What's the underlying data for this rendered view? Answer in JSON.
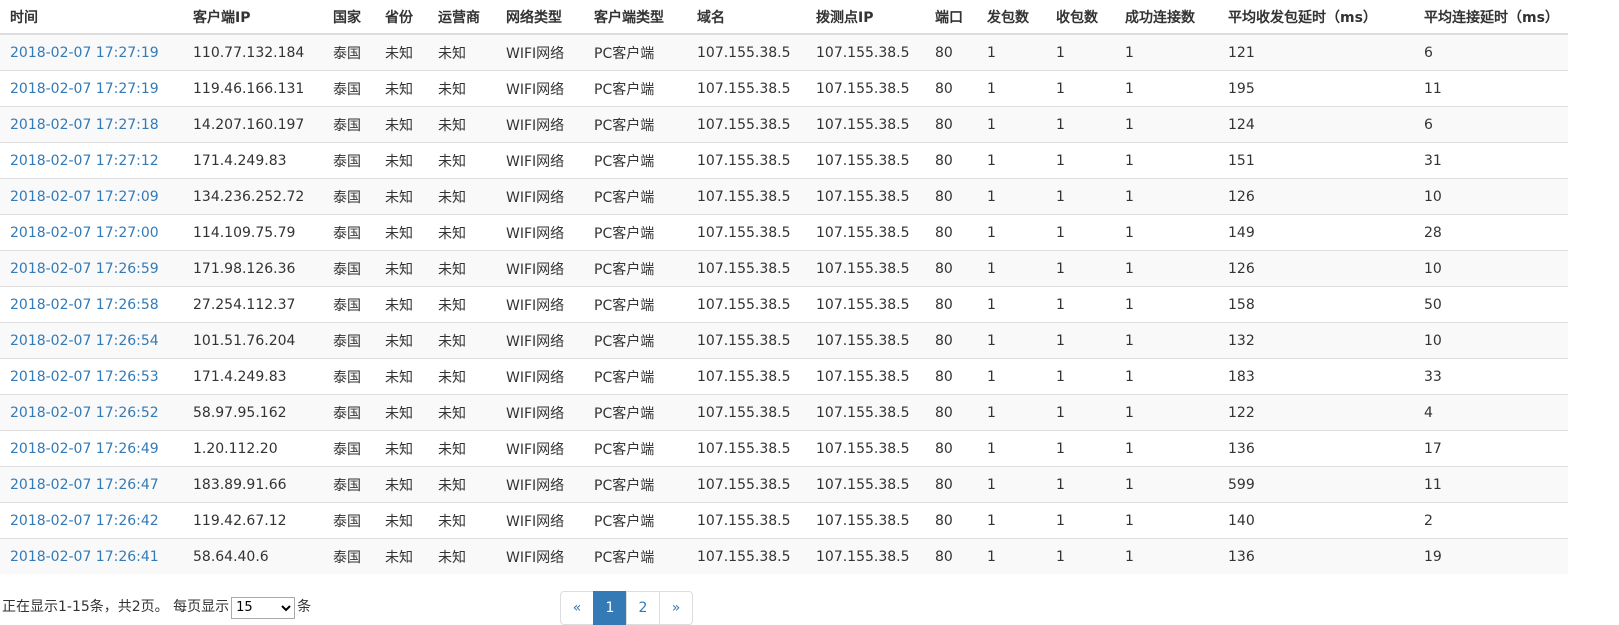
{
  "table": {
    "headers": [
      "时间",
      "客户端IP",
      "国家",
      "省份",
      "运营商",
      "网络类型",
      "客户端类型",
      "域名",
      "拨测点IP",
      "端口",
      "发包数",
      "收包数",
      "成功连接数",
      "平均收发包延时（ms）",
      "平均连接延时（ms）"
    ],
    "rows": [
      [
        "2018-02-07 17:27:19",
        "110.77.132.184",
        "泰国",
        "未知",
        "未知",
        "WIFI网络",
        "PC客户端",
        "107.155.38.5",
        "107.155.38.5",
        "80",
        "1",
        "1",
        "1",
        "121",
        "6"
      ],
      [
        "2018-02-07 17:27:19",
        "119.46.166.131",
        "泰国",
        "未知",
        "未知",
        "WIFI网络",
        "PC客户端",
        "107.155.38.5",
        "107.155.38.5",
        "80",
        "1",
        "1",
        "1",
        "195",
        "11"
      ],
      [
        "2018-02-07 17:27:18",
        "14.207.160.197",
        "泰国",
        "未知",
        "未知",
        "WIFI网络",
        "PC客户端",
        "107.155.38.5",
        "107.155.38.5",
        "80",
        "1",
        "1",
        "1",
        "124",
        "6"
      ],
      [
        "2018-02-07 17:27:12",
        "171.4.249.83",
        "泰国",
        "未知",
        "未知",
        "WIFI网络",
        "PC客户端",
        "107.155.38.5",
        "107.155.38.5",
        "80",
        "1",
        "1",
        "1",
        "151",
        "31"
      ],
      [
        "2018-02-07 17:27:09",
        "134.236.252.72",
        "泰国",
        "未知",
        "未知",
        "WIFI网络",
        "PC客户端",
        "107.155.38.5",
        "107.155.38.5",
        "80",
        "1",
        "1",
        "1",
        "126",
        "10"
      ],
      [
        "2018-02-07 17:27:00",
        "114.109.75.79",
        "泰国",
        "未知",
        "未知",
        "WIFI网络",
        "PC客户端",
        "107.155.38.5",
        "107.155.38.5",
        "80",
        "1",
        "1",
        "1",
        "149",
        "28"
      ],
      [
        "2018-02-07 17:26:59",
        "171.98.126.36",
        "泰国",
        "未知",
        "未知",
        "WIFI网络",
        "PC客户端",
        "107.155.38.5",
        "107.155.38.5",
        "80",
        "1",
        "1",
        "1",
        "126",
        "10"
      ],
      [
        "2018-02-07 17:26:58",
        "27.254.112.37",
        "泰国",
        "未知",
        "未知",
        "WIFI网络",
        "PC客户端",
        "107.155.38.5",
        "107.155.38.5",
        "80",
        "1",
        "1",
        "1",
        "158",
        "50"
      ],
      [
        "2018-02-07 17:26:54",
        "101.51.76.204",
        "泰国",
        "未知",
        "未知",
        "WIFI网络",
        "PC客户端",
        "107.155.38.5",
        "107.155.38.5",
        "80",
        "1",
        "1",
        "1",
        "132",
        "10"
      ],
      [
        "2018-02-07 17:26:53",
        "171.4.249.83",
        "泰国",
        "未知",
        "未知",
        "WIFI网络",
        "PC客户端",
        "107.155.38.5",
        "107.155.38.5",
        "80",
        "1",
        "1",
        "1",
        "183",
        "33"
      ],
      [
        "2018-02-07 17:26:52",
        "58.97.95.162",
        "泰国",
        "未知",
        "未知",
        "WIFI网络",
        "PC客户端",
        "107.155.38.5",
        "107.155.38.5",
        "80",
        "1",
        "1",
        "1",
        "122",
        "4"
      ],
      [
        "2018-02-07 17:26:49",
        "1.20.112.20",
        "泰国",
        "未知",
        "未知",
        "WIFI网络",
        "PC客户端",
        "107.155.38.5",
        "107.155.38.5",
        "80",
        "1",
        "1",
        "1",
        "136",
        "17"
      ],
      [
        "2018-02-07 17:26:47",
        "183.89.91.66",
        "泰国",
        "未知",
        "未知",
        "WIFI网络",
        "PC客户端",
        "107.155.38.5",
        "107.155.38.5",
        "80",
        "1",
        "1",
        "1",
        "599",
        "11"
      ],
      [
        "2018-02-07 17:26:42",
        "119.42.67.12",
        "泰国",
        "未知",
        "未知",
        "WIFI网络",
        "PC客户端",
        "107.155.38.5",
        "107.155.38.5",
        "80",
        "1",
        "1",
        "1",
        "140",
        "2"
      ],
      [
        "2018-02-07 17:26:41",
        "58.64.40.6",
        "泰国",
        "未知",
        "未知",
        "WIFI网络",
        "PC客户端",
        "107.155.38.5",
        "107.155.38.5",
        "80",
        "1",
        "1",
        "1",
        "136",
        "19"
      ]
    ]
  },
  "footer": {
    "info_prefix": "正在显示1-15条，共2页。 每页显示",
    "page_size": "15",
    "info_suffix": "条"
  },
  "pagination": {
    "prev": "«",
    "pages": [
      "1",
      "2"
    ],
    "next": "»"
  },
  "colors": {
    "link": "#337ab7",
    "stripe": "#f9f9f9",
    "border": "#dddddd"
  }
}
